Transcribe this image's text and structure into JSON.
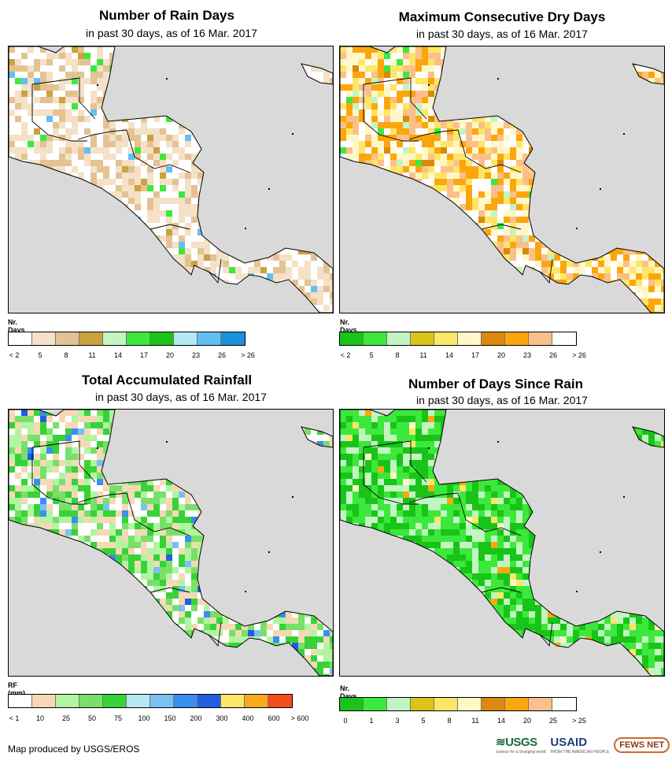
{
  "panels": [
    {
      "title": "Number of Rain Days",
      "subtitle": "in past 30 days, as of 16 Mar. 2017",
      "legend_title": "Nr. Days",
      "legend_colors": [
        "#ffffff",
        "#f5e1c7",
        "#e3c394",
        "#c9a23f",
        "#c2f5c2",
        "#3de83d",
        "#19c419",
        "#b5e8f5",
        "#63bff2",
        "#1d91d9"
      ],
      "legend_labels": [
        "< 2",
        "5",
        "8",
        "11",
        "14",
        "17",
        "20",
        "23",
        "26",
        "> 26"
      ],
      "land_colors": [
        "#ffffff",
        "#ffffff",
        "#f5e1c7",
        "#f5e1c7",
        "#e3c394"
      ],
      "accent_colors": [
        "#3de83d",
        "#63bff2",
        "#c9a23f"
      ]
    },
    {
      "title": "Maximum Consecutive Dry Days",
      "subtitle": "in past 30 days, as of 16 Mar. 2017",
      "legend_title": "Nr. Days",
      "legend_colors": [
        "#19c419",
        "#3de83d",
        "#c2f5c2",
        "#d9c419",
        "#fde667",
        "#fff7c7",
        "#d98a0e",
        "#fca60e",
        "#fbc08a",
        "#ffffff"
      ],
      "legend_labels": [
        "< 2",
        "5",
        "8",
        "11",
        "14",
        "17",
        "20",
        "23",
        "26",
        "> 26"
      ],
      "land_colors": [
        "#fff7c7",
        "#fde667",
        "#fca60e",
        "#ffffff",
        "#fbc08a"
      ],
      "accent_colors": [
        "#3de83d",
        "#d98a0e",
        "#c2f5c2"
      ]
    },
    {
      "title": "Total Accumulated Rainfall",
      "subtitle": "in past 30 days, as of 16 Mar. 2017",
      "legend_title": "RF (mm)",
      "legend_colors": [
        "#ffffff",
        "#f5d9b5",
        "#b2f5a0",
        "#78e068",
        "#38d238",
        "#b5e8f5",
        "#7ac0f0",
        "#3a8ef0",
        "#1f5fe0",
        "#fde66a",
        "#f9a91a",
        "#f24e1a"
      ],
      "legend_labels": [
        "< 1",
        "10",
        "25",
        "50",
        "75",
        "100",
        "150",
        "200",
        "300",
        "400",
        "600",
        "> 600"
      ],
      "land_colors": [
        "#78e068",
        "#b2f5a0",
        "#38d238",
        "#f5d9b5",
        "#ffffff"
      ],
      "accent_colors": [
        "#3a8ef0",
        "#7ac0f0",
        "#1f5fe0"
      ]
    },
    {
      "title": "Number of Days Since Rain",
      "subtitle": "in past 30 days, as of 16 Mar. 2017",
      "legend_title": "Nr. Days",
      "legend_colors": [
        "#19c419",
        "#3de83d",
        "#c2f5c2",
        "#d9c419",
        "#fde667",
        "#fff7c7",
        "#d98a0e",
        "#fca60e",
        "#fbc08a",
        "#ffffff"
      ],
      "legend_labels": [
        "0",
        "1",
        "3",
        "5",
        "8",
        "11",
        "14",
        "20",
        "25",
        "> 25"
      ],
      "land_colors": [
        "#19c419",
        "#3de83d",
        "#3de83d",
        "#c2f5c2",
        "#19c419"
      ],
      "accent_colors": [
        "#fde667",
        "#fff7c7",
        "#fca60e"
      ]
    }
  ],
  "footer": "Map produced by USGS/EROS",
  "logos": {
    "usgs": "≋USGS",
    "usgs_sub": "science for a changing world",
    "usaid": "USAID",
    "usaid_sub": "FROM THE AMERICAN PEOPLE",
    "fews": "FEWS NET"
  },
  "colors": {
    "ocean": "#d9d9d9",
    "border": "#000000"
  }
}
